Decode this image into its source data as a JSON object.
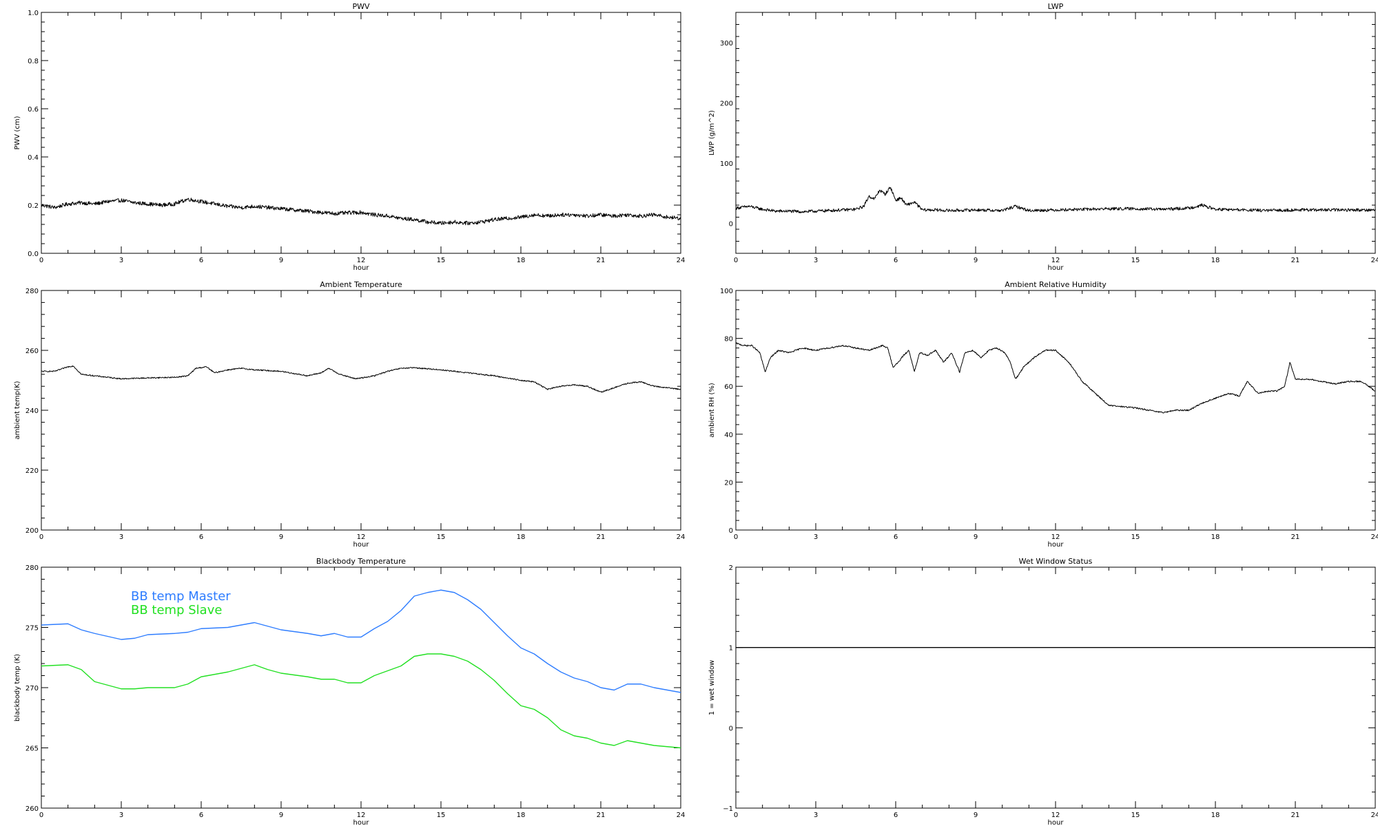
{
  "chart_data": [
    {
      "type": "line",
      "title": "PWV",
      "xlabel": "hour",
      "ylabel": "PWV (cm)",
      "xlim": [
        0,
        24
      ],
      "ylim": [
        0,
        1.0
      ],
      "xticks": [
        0,
        3,
        6,
        9,
        12,
        15,
        18,
        21,
        24
      ],
      "yticks": [
        0.0,
        0.2,
        0.4,
        0.6,
        0.8,
        1.0
      ],
      "ytick_labels": [
        "0.0",
        "0.2",
        "0.4",
        "0.6",
        "0.8",
        "1.0"
      ],
      "noise": 0.008,
      "series": [
        {
          "color": "#000000",
          "x": [
            0,
            0.5,
            1,
            1.5,
            2,
            2.5,
            3,
            3.5,
            4,
            4.5,
            5,
            5.5,
            6,
            6.5,
            7,
            7.5,
            8,
            8.5,
            9,
            9.5,
            10,
            10.5,
            11,
            11.5,
            12,
            12.5,
            13,
            13.5,
            14,
            14.5,
            15,
            15.5,
            16,
            16.5,
            17,
            17.5,
            18,
            18.5,
            19,
            19.5,
            20,
            20.5,
            21,
            21.5,
            22,
            22.5,
            23,
            23.5,
            24
          ],
          "y": [
            0.2,
            0.19,
            0.205,
            0.21,
            0.205,
            0.215,
            0.22,
            0.21,
            0.205,
            0.2,
            0.205,
            0.225,
            0.215,
            0.205,
            0.195,
            0.19,
            0.195,
            0.19,
            0.185,
            0.18,
            0.175,
            0.17,
            0.165,
            0.168,
            0.17,
            0.16,
            0.155,
            0.145,
            0.14,
            0.13,
            0.125,
            0.13,
            0.125,
            0.13,
            0.14,
            0.145,
            0.15,
            0.16,
            0.155,
            0.16,
            0.16,
            0.155,
            0.16,
            0.155,
            0.16,
            0.155,
            0.16,
            0.15,
            0.145
          ]
        }
      ]
    },
    {
      "type": "line",
      "title": "LWP",
      "xlabel": "hour",
      "ylabel": "LWP (g/m^2)",
      "xlim": [
        0,
        24
      ],
      "ylim": [
        -50,
        350
      ],
      "xticks": [
        0,
        3,
        6,
        9,
        12,
        15,
        18,
        21,
        24
      ],
      "yticks": [
        0,
        100,
        200,
        300
      ],
      "ytick_labels": [
        "0",
        "100",
        "200",
        "300"
      ],
      "noise": 2.5,
      "series": [
        {
          "color": "#000000",
          "x": [
            0,
            0.5,
            1,
            1.5,
            2,
            2.5,
            3,
            3.5,
            4,
            4.5,
            4.8,
            5.0,
            5.2,
            5.4,
            5.6,
            5.8,
            6.0,
            6.2,
            6.4,
            6.7,
            7,
            7.5,
            8,
            9,
            10,
            10.5,
            11,
            12,
            13,
            14,
            15,
            16,
            17,
            17.5,
            18,
            19,
            20,
            21,
            22,
            23,
            24
          ],
          "y": [
            25,
            28,
            23,
            20,
            20,
            19,
            20,
            21,
            22,
            23,
            28,
            45,
            40,
            55,
            48,
            60,
            38,
            42,
            30,
            35,
            22,
            22,
            21,
            22,
            21,
            28,
            21,
            22,
            23,
            24,
            24,
            23,
            25,
            30,
            23,
            22,
            21,
            22,
            22,
            22,
            22
          ]
        }
      ]
    },
    {
      "type": "line",
      "title": "Ambient Temperature",
      "xlabel": "hour",
      "ylabel": "ambient temp(K)",
      "xlim": [
        0,
        24
      ],
      "ylim": [
        200,
        280
      ],
      "xticks": [
        0,
        3,
        6,
        9,
        12,
        15,
        18,
        21,
        24
      ],
      "yticks": [
        200,
        220,
        240,
        260,
        280
      ],
      "ytick_labels": [
        "200",
        "220",
        "240",
        "260",
        "280"
      ],
      "noise": 0.2,
      "series": [
        {
          "color": "#000000",
          "x": [
            0,
            0.5,
            1,
            1.2,
            1.5,
            2,
            3,
            4,
            5,
            5.5,
            5.8,
            6.2,
            6.5,
            7,
            7.5,
            8,
            9,
            10,
            10.5,
            10.8,
            11.2,
            11.8,
            12.5,
            13,
            13.5,
            14,
            15,
            16,
            17,
            18,
            18.5,
            19,
            19.5,
            20,
            20.5,
            21,
            21.5,
            22,
            22.5,
            23,
            24
          ],
          "y": [
            253,
            253,
            254.5,
            254.8,
            252,
            251.5,
            250.5,
            250.8,
            251,
            251.5,
            254,
            254.5,
            252.5,
            253.5,
            254,
            253.5,
            253,
            251.5,
            252.5,
            254,
            252,
            250.5,
            251.5,
            253,
            254,
            254.2,
            253.5,
            252.5,
            251.5,
            250,
            249.5,
            247,
            248,
            248.5,
            248,
            246,
            247.5,
            249,
            249.5,
            248,
            247
          ]
        }
      ]
    },
    {
      "type": "line",
      "title": "Ambient Relative Humidity",
      "xlabel": "hour",
      "ylabel": "ambient RH (%)",
      "xlim": [
        0,
        24
      ],
      "ylim": [
        0,
        100
      ],
      "xticks": [
        0,
        3,
        6,
        9,
        12,
        15,
        18,
        21,
        24
      ],
      "yticks": [
        0,
        20,
        40,
        60,
        80,
        100
      ],
      "ytick_labels": [
        "0",
        "20",
        "40",
        "60",
        "80",
        "100"
      ],
      "noise": 0.3,
      "series": [
        {
          "color": "#000000",
          "x": [
            0,
            0.3,
            0.6,
            0.9,
            1.1,
            1.3,
            1.6,
            2,
            2.5,
            3,
            3.5,
            4,
            4.5,
            5,
            5.5,
            5.7,
            5.9,
            6.1,
            6.3,
            6.5,
            6.7,
            6.9,
            7.2,
            7.5,
            7.8,
            8.1,
            8.4,
            8.6,
            8.9,
            9.2,
            9.5,
            9.8,
            10.1,
            10.3,
            10.5,
            10.8,
            11.2,
            11.6,
            12,
            12.5,
            13,
            13.5,
            14,
            15,
            16,
            16.5,
            17,
            17.5,
            18,
            18.5,
            18.9,
            19.2,
            19.6,
            20,
            20.3,
            20.6,
            20.8,
            21,
            21.5,
            22,
            22.5,
            23,
            23.5,
            24
          ],
          "y": [
            78,
            77,
            77,
            74,
            66,
            72,
            75,
            74,
            76,
            75,
            76,
            77,
            76,
            75,
            77,
            76,
            68,
            70,
            73,
            75,
            66,
            74,
            73,
            75,
            70,
            74,
            66,
            74,
            75,
            72,
            75,
            76,
            74,
            70,
            63,
            68,
            72,
            75,
            75,
            70,
            62,
            57,
            52,
            51,
            49,
            50,
            50,
            53,
            55,
            57,
            56,
            62,
            57,
            58,
            58,
            60,
            70,
            63,
            63,
            62,
            61,
            62,
            62,
            58
          ]
        }
      ]
    },
    {
      "type": "line",
      "title": "Blackbody Temperature",
      "xlabel": "hour",
      "ylabel": "blackbody temp (K)",
      "xlim": [
        0,
        24
      ],
      "ylim": [
        260,
        280
      ],
      "xticks": [
        0,
        3,
        6,
        9,
        12,
        15,
        18,
        21,
        24
      ],
      "yticks": [
        260,
        265,
        270,
        275,
        280
      ],
      "ytick_labels": [
        "260",
        "265",
        "270",
        "275",
        "280"
      ],
      "legend_placement": "top-left",
      "noise": 0,
      "series": [
        {
          "name": "BB temp Master",
          "color": "#2e7dff",
          "x": [
            0,
            1,
            1.5,
            2,
            3,
            3.5,
            4,
            5,
            5.5,
            6,
            7,
            7.5,
            8,
            8.5,
            9,
            10,
            10.5,
            11,
            11.5,
            12,
            12.5,
            13,
            13.5,
            14,
            14.5,
            15,
            15.5,
            16,
            16.5,
            17,
            17.5,
            18,
            18.5,
            19,
            19.5,
            20,
            20.5,
            21,
            21.5,
            22,
            22.5,
            23,
            24
          ],
          "y": [
            275.2,
            275.3,
            274.8,
            274.5,
            274.0,
            274.1,
            274.4,
            274.5,
            274.6,
            274.9,
            275.0,
            275.2,
            275.4,
            275.1,
            274.8,
            274.5,
            274.3,
            274.5,
            274.2,
            274.2,
            274.9,
            275.5,
            276.4,
            277.6,
            277.9,
            278.1,
            277.9,
            277.3,
            276.5,
            275.4,
            274.3,
            273.3,
            272.8,
            272.0,
            271.3,
            270.8,
            270.5,
            270.0,
            269.8,
            270.3,
            270.3,
            270.0,
            269.6
          ]
        },
        {
          "name": "BB temp Slave",
          "color": "#22e022",
          "x": [
            0,
            1,
            1.5,
            2,
            3,
            3.5,
            4,
            5,
            5.5,
            6,
            7,
            7.5,
            8,
            8.5,
            9,
            10,
            10.5,
            11,
            11.5,
            12,
            12.5,
            13,
            13.5,
            14,
            14.5,
            15,
            15.5,
            16,
            16.5,
            17,
            17.5,
            18,
            18.5,
            19,
            19.5,
            20,
            20.5,
            21,
            21.5,
            22,
            22.5,
            23,
            24
          ],
          "y": [
            271.8,
            271.9,
            271.5,
            270.5,
            269.9,
            269.9,
            270.0,
            270.0,
            270.3,
            270.9,
            271.3,
            271.6,
            271.9,
            271.5,
            271.2,
            270.9,
            270.7,
            270.7,
            270.4,
            270.4,
            271.0,
            271.4,
            271.8,
            272.6,
            272.8,
            272.8,
            272.6,
            272.2,
            271.5,
            270.6,
            269.5,
            268.5,
            268.2,
            267.5,
            266.5,
            266.0,
            265.8,
            265.4,
            265.2,
            265.6,
            265.4,
            265.2,
            265.0
          ]
        }
      ]
    },
    {
      "type": "line",
      "title": "Wet Window Status",
      "xlabel": "hour",
      "ylabel": "1 = wet window",
      "xlim": [
        0,
        24
      ],
      "ylim": [
        -1,
        2
      ],
      "xticks": [
        0,
        3,
        6,
        9,
        12,
        15,
        18,
        21,
        24
      ],
      "yticks": [
        -1,
        0,
        1,
        2
      ],
      "ytick_labels": [
        "−1",
        "0",
        "1",
        "2"
      ],
      "noise": 0,
      "series": [
        {
          "color": "#000000",
          "x": [
            0,
            24
          ],
          "y": [
            1,
            1
          ]
        }
      ]
    }
  ]
}
